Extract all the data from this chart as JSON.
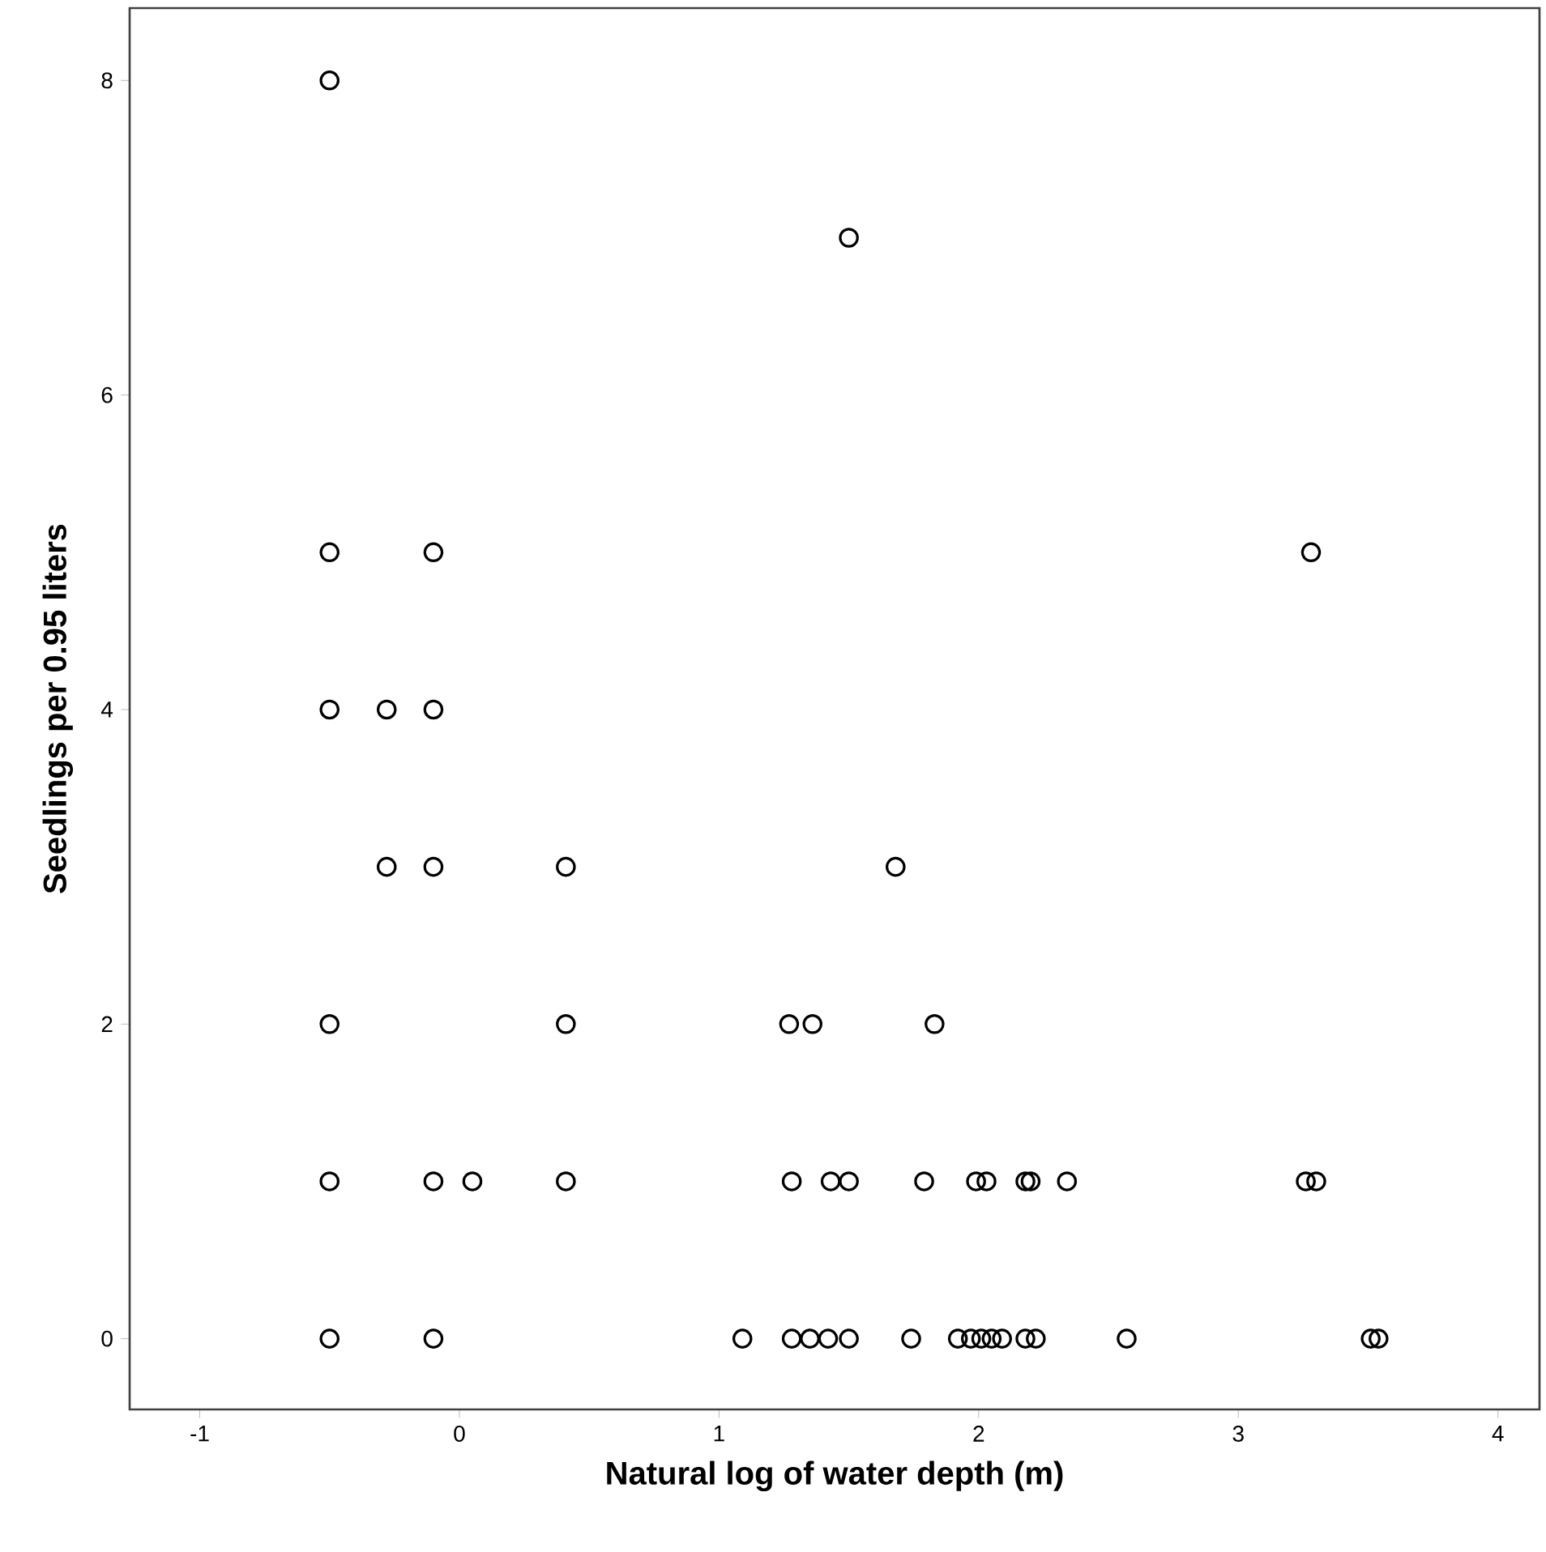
{
  "chart_data": {
    "type": "scatter",
    "xlabel": "Natural log of water depth (m)",
    "ylabel": "Seedlings per 0.95 liters",
    "x": [
      -0.5,
      1.5,
      -0.5,
      -0.1,
      3.28,
      -0.5,
      -0.28,
      -0.1,
      -0.28,
      -0.1,
      0.41,
      1.68,
      -0.5,
      0.41,
      1.27,
      1.36,
      1.83,
      -0.5,
      -0.1,
      0.05,
      0.41,
      1.28,
      1.43,
      1.5,
      1.79,
      1.99,
      2.03,
      2.18,
      2.2,
      2.34,
      3.26,
      3.3,
      -0.5,
      -0.1,
      1.09,
      1.28,
      1.35,
      1.42,
      1.5,
      1.74,
      1.92,
      1.97,
      2.01,
      2.05,
      2.09,
      2.18,
      2.22,
      2.57,
      3.51,
      3.54
    ],
    "values": [
      8,
      7,
      5,
      5,
      5,
      4,
      4,
      4,
      3,
      3,
      3,
      3,
      2,
      2,
      2,
      2,
      2,
      1,
      1,
      1,
      1,
      1,
      1,
      1,
      1,
      1,
      1,
      1,
      1,
      1,
      1,
      1,
      0,
      0,
      0,
      0,
      0,
      0,
      0,
      0,
      0,
      0,
      0,
      0,
      0,
      0,
      0,
      0,
      0,
      0
    ],
    "color": "#000000",
    "marker": "circle",
    "xlim": [
      -1.27,
      4.16
    ],
    "ylim": [
      -0.45,
      8.46
    ],
    "xticks": [
      -1,
      0,
      1,
      2,
      3,
      4
    ],
    "yticks": [
      0,
      2,
      4,
      6,
      8
    ]
  }
}
